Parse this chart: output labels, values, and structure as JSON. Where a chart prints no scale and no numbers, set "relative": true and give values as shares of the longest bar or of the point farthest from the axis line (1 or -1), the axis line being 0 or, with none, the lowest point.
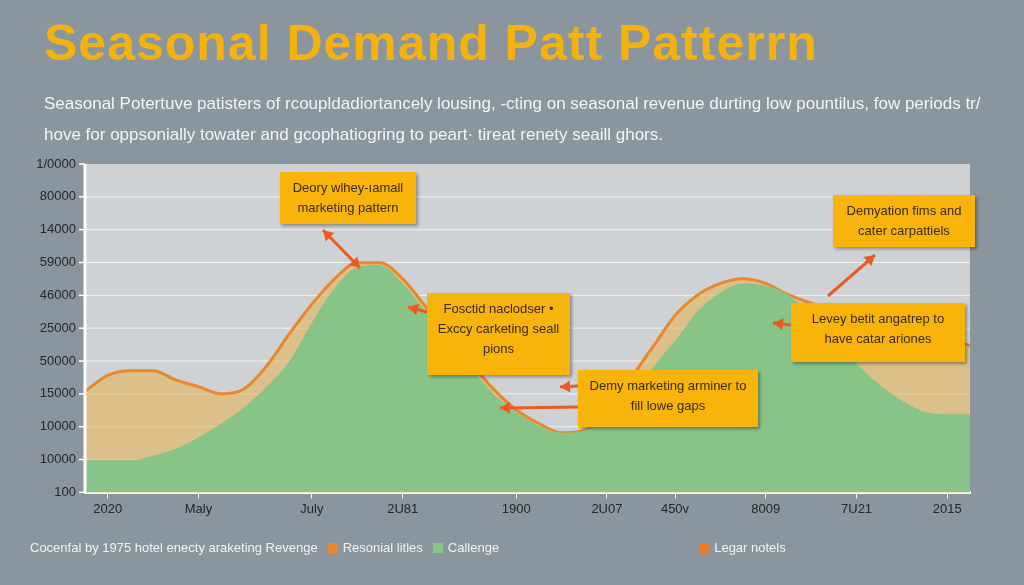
{
  "chart_data": {
    "type": "area",
    "relative": true,
    "title": "Seasonal  Demand Patt Patterrn",
    "subtitle": "Seasonal Potertuve patisters of rcoupldadiortancely lousing, -cting on seasonal revenue durting low pountilus, fow periods tr/ hove for oppsonially towater and gcophatiogring to peart· tireat renety seaill ghors.",
    "categories": [
      null,
      "2020",
      null,
      null,
      null,
      "Maly",
      null,
      null,
      null,
      null,
      "July",
      null,
      null,
      null,
      "2U81",
      null,
      null,
      null,
      null,
      "1900",
      null,
      null,
      null,
      "2U07",
      null,
      null,
      "450v",
      null,
      null,
      null,
      "8009",
      null,
      null,
      null,
      "7U21",
      null,
      null,
      null,
      "2015",
      null
    ],
    "series": [
      {
        "name": "Resonial litles",
        "color": "#e8872c",
        "values": [
          0.44,
          0.51,
          0.53,
          0.53,
          0.49,
          0.46,
          0.43,
          0.45,
          0.55,
          0.69,
          0.82,
          0.93,
          1,
          1,
          0.93,
          0.81,
          null,
          null,
          0.45,
          0.36,
          0.3,
          0.26,
          0.27,
          null,
          null,
          0.63,
          0.77,
          0.86,
          0.91,
          0.93,
          0.91,
          0.86,
          null,
          null,
          null,
          null,
          null,
          null,
          null,
          0.64
        ]
      },
      {
        "name": "Callenge",
        "color": "#88c487",
        "values": [
          0.14,
          0.14,
          0.14,
          0.16,
          0.19,
          0.24,
          0.3,
          0.37,
          0.46,
          0.57,
          0.74,
          0.89,
          0.98,
          0.99,
          0.91,
          0.79,
          null,
          null,
          0.43,
          0.35,
          0.29,
          0.26,
          0.27,
          null,
          null,
          null,
          0.66,
          0.79,
          0.87,
          0.91,
          0.9,
          0.86,
          null,
          null,
          0.56,
          0.47,
          0.4,
          0.35,
          0.34,
          0.34
        ]
      }
    ],
    "annotations": [
      "Deory wlhey-ıamall marketing pattern",
      "Fosctid naclodser • Exccy carketing seall pions",
      "Demy marketing arminer to fill lowe gaps",
      "Demyation fims and cater carpattiels",
      "Levey betit angatrep to have catar ariones",
      "Cocenfal by 1975 hotel enecty araketing Revenge",
      "Legar notels",
      "1/0000",
      "80000",
      "14000",
      "59000",
      "46000",
      "25000",
      "50000",
      "15000",
      "10000",
      "10000",
      "100"
    ],
    "grid": "y",
    "legend": "bottom",
    "marker": "none"
  }
}
